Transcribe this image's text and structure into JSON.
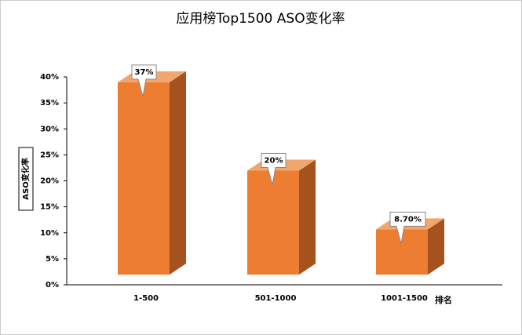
{
  "chart_data": {
    "type": "bar3d",
    "title": "应用榜Top1500 ASO变化率",
    "y_label": "ASO变化率",
    "x_label": "排名",
    "categories": [
      "1-500",
      "501-1000",
      "1001-1500"
    ],
    "values": [
      37,
      20,
      8.7
    ],
    "value_labels": [
      "37%",
      "20%",
      "8.70%"
    ],
    "color": "#ed7d31",
    "ylim": [
      0,
      40
    ],
    "yticks": [
      {
        "value": 0,
        "label": "0%"
      },
      {
        "value": 5,
        "label": "5%"
      },
      {
        "value": 10,
        "label": "10%"
      },
      {
        "value": 15,
        "label": "15%"
      },
      {
        "value": 20,
        "label": "20%"
      },
      {
        "value": 25,
        "label": "25%"
      },
      {
        "value": 30,
        "label": "30%"
      },
      {
        "value": 35,
        "label": "35%"
      },
      {
        "value": 40,
        "label": "40%"
      }
    ]
  }
}
